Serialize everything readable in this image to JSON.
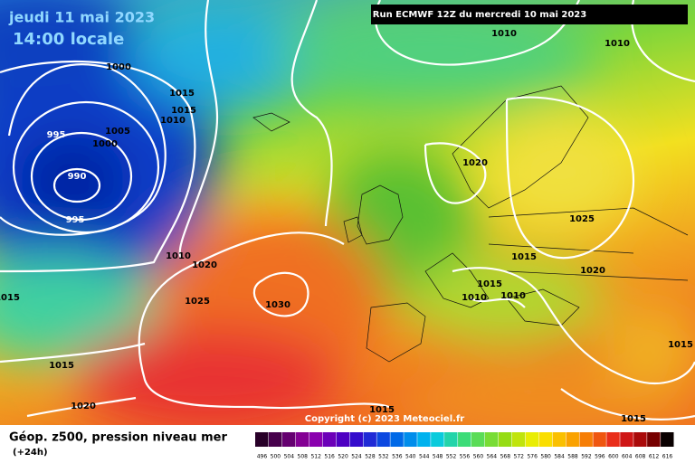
{
  "header": {
    "date": "jeudi 11 mai 2023",
    "time": "14:00 locale",
    "run": "Run ECMWF 12Z du mercredi 10 mai 2023",
    "copyright": "Copyright (c) 2023 Meteociel.fr"
  },
  "footer": {
    "title": "Géop. z500, pression niveau mer",
    "step": "(+24h)"
  },
  "isobar_labels": [
    1010,
    1010,
    1000,
    1015,
    1015,
    1010,
    995,
    1005,
    1000,
    990,
    995,
    1020,
    1025,
    1010,
    1020,
    1015,
    1020,
    1015,
    1025,
    1030,
    1015,
    1010,
    1010,
    1015,
    1015,
    1020,
    1015,
    1015
  ],
  "colorbar_labels": [
    496,
    500,
    504,
    508,
    512,
    516,
    520,
    524,
    528,
    532,
    536,
    540,
    544,
    548,
    552,
    556,
    560,
    564,
    568,
    572,
    576,
    580,
    584,
    588,
    592,
    596,
    600,
    604,
    608,
    612,
    616
  ]
}
